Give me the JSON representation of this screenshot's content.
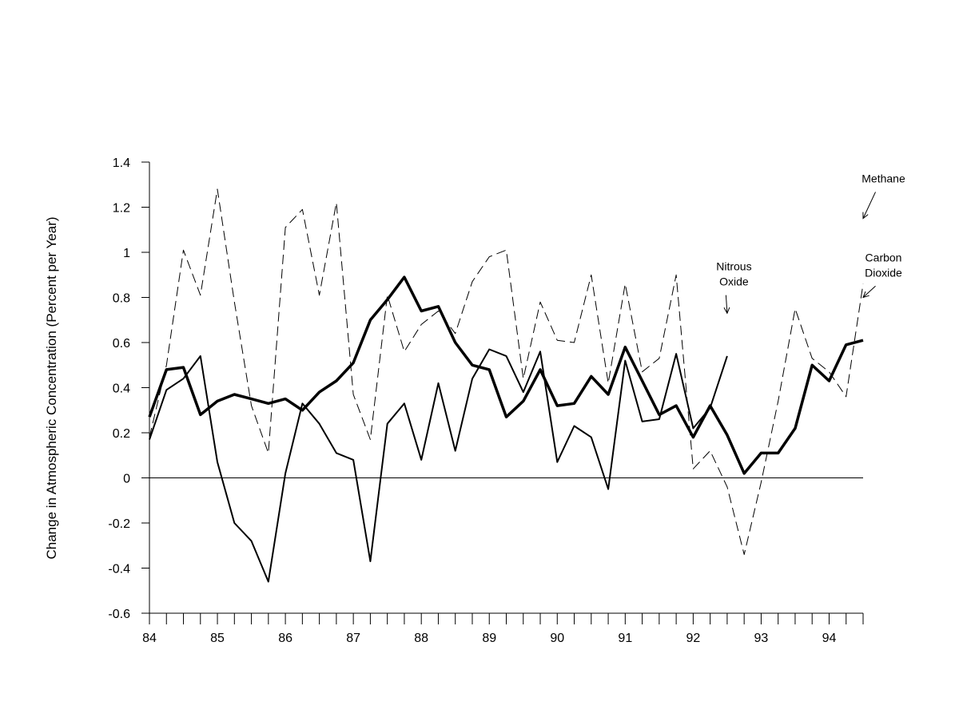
{
  "chart_data": {
    "type": "line",
    "title": "",
    "xlabel": "",
    "ylabel": "Change in Atmospheric Concentration (Percent per Year)",
    "xlim": [
      84,
      94.5
    ],
    "ylim": [
      -0.6,
      1.4
    ],
    "y_ticks": [
      "1.4",
      "1.2",
      "1",
      "0.8",
      "0.6",
      "0.4",
      "0.2",
      "0",
      "-0.2",
      "-0.4",
      "-0.6"
    ],
    "y_tick_values": [
      1.4,
      1.2,
      1,
      0.8,
      0.6,
      0.4,
      0.2,
      0,
      -0.2,
      -0.4,
      -0.6
    ],
    "x_ticks": [
      "84",
      "85",
      "86",
      "87",
      "88",
      "89",
      "90",
      "91",
      "92",
      "93",
      "94"
    ],
    "x_tick_values": [
      84,
      85,
      86,
      87,
      88,
      89,
      90,
      91,
      92,
      93,
      94
    ],
    "grid": false,
    "legend": "none (series identified by annotations with arrows)",
    "series": [
      {
        "name": "Methane",
        "style": "dashed-thin",
        "x": [
          84,
          84.25,
          84.5,
          84.75,
          85,
          85.25,
          85.5,
          85.75,
          86,
          86.25,
          86.5,
          86.75,
          87,
          87.25,
          87.5,
          87.75,
          88,
          88.25,
          88.5,
          88.75,
          89,
          89.25,
          89.5,
          89.75,
          90,
          90.25,
          90.5,
          90.75,
          91,
          91.25,
          91.5,
          91.75,
          92,
          92.25,
          92.5,
          92.75,
          93,
          93.25,
          93.5,
          93.75,
          94,
          94.25,
          94.5
        ],
        "y": [
          0.18,
          0.5,
          1.01,
          0.81,
          1.28,
          0.78,
          0.32,
          0.11,
          1.11,
          1.19,
          0.81,
          1.22,
          0.37,
          0.17,
          0.81,
          0.56,
          0.68,
          0.74,
          0.64,
          0.87,
          0.98,
          1.01,
          0.44,
          0.78,
          0.61,
          0.6,
          0.9,
          0.42,
          0.86,
          0.47,
          0.53,
          0.9,
          0.04,
          0.12,
          -0.04,
          -0.34,
          -0.02,
          0.34,
          0.75,
          0.53,
          0.47,
          0.36,
          0.86
        ]
      },
      {
        "name": "Carbon Dioxide",
        "style": "solid-thick",
        "x": [
          84,
          84.25,
          84.5,
          84.75,
          85,
          85.25,
          85.5,
          85.75,
          86,
          86.25,
          86.5,
          86.75,
          87,
          87.25,
          87.5,
          87.75,
          88,
          88.25,
          88.5,
          88.75,
          89,
          89.25,
          89.5,
          89.75,
          90,
          90.25,
          90.5,
          90.75,
          91,
          91.25,
          91.5,
          91.75,
          92,
          92.25,
          92.5,
          92.75,
          93,
          93.25,
          93.5,
          93.75,
          94,
          94.25,
          94.5
        ],
        "y": [
          0.27,
          0.48,
          0.49,
          0.28,
          0.34,
          0.37,
          0.35,
          0.33,
          0.35,
          0.3,
          0.38,
          0.43,
          0.51,
          0.7,
          0.79,
          0.89,
          0.74,
          0.76,
          0.6,
          0.5,
          0.48,
          0.27,
          0.34,
          0.48,
          0.32,
          0.33,
          0.45,
          0.37,
          0.58,
          0.43,
          0.28,
          0.32,
          0.18,
          0.32,
          0.19,
          0.02,
          0.11,
          0.11,
          0.22,
          0.5,
          0.43,
          0.59,
          0.61
        ]
      },
      {
        "name": "Nitrous Oxide",
        "style": "solid-medium",
        "x": [
          84,
          84.25,
          84.5,
          84.75,
          85,
          85.25,
          85.5,
          85.75,
          86,
          86.25,
          86.5,
          86.75,
          87,
          87.25,
          87.5,
          87.75,
          88,
          88.25,
          88.5,
          88.75,
          89,
          89.25,
          89.5,
          89.75,
          90,
          90.25,
          90.5,
          90.75,
          91,
          91.25,
          91.5,
          91.75,
          92,
          92.25,
          92.5
        ],
        "y": [
          0.17,
          0.39,
          0.44,
          0.54,
          0.07,
          -0.2,
          -0.28,
          -0.46,
          0.02,
          0.33,
          0.24,
          0.11,
          0.08,
          -0.37,
          0.24,
          0.33,
          0.08,
          0.42,
          0.12,
          0.44,
          0.57,
          0.54,
          0.38,
          0.56,
          0.07,
          0.23,
          0.18,
          -0.05,
          0.52,
          0.25,
          0.26,
          0.55,
          0.22,
          0.31,
          0.54
        ]
      }
    ],
    "annotations": [
      {
        "lines": [
          "Methane"
        ],
        "x": 94.8,
        "y": 1.31,
        "arrow_to": [
          94.5,
          1.15
        ]
      },
      {
        "lines": [
          "Carbon",
          "Dioxide"
        ],
        "x": 94.8,
        "y": 0.96,
        "arrow_to": [
          94.5,
          0.8
        ]
      },
      {
        "lines": [
          "Nitrous",
          "Oxide"
        ],
        "x": 92.6,
        "y": 0.92,
        "arrow_to": [
          92.5,
          0.73
        ]
      }
    ]
  }
}
